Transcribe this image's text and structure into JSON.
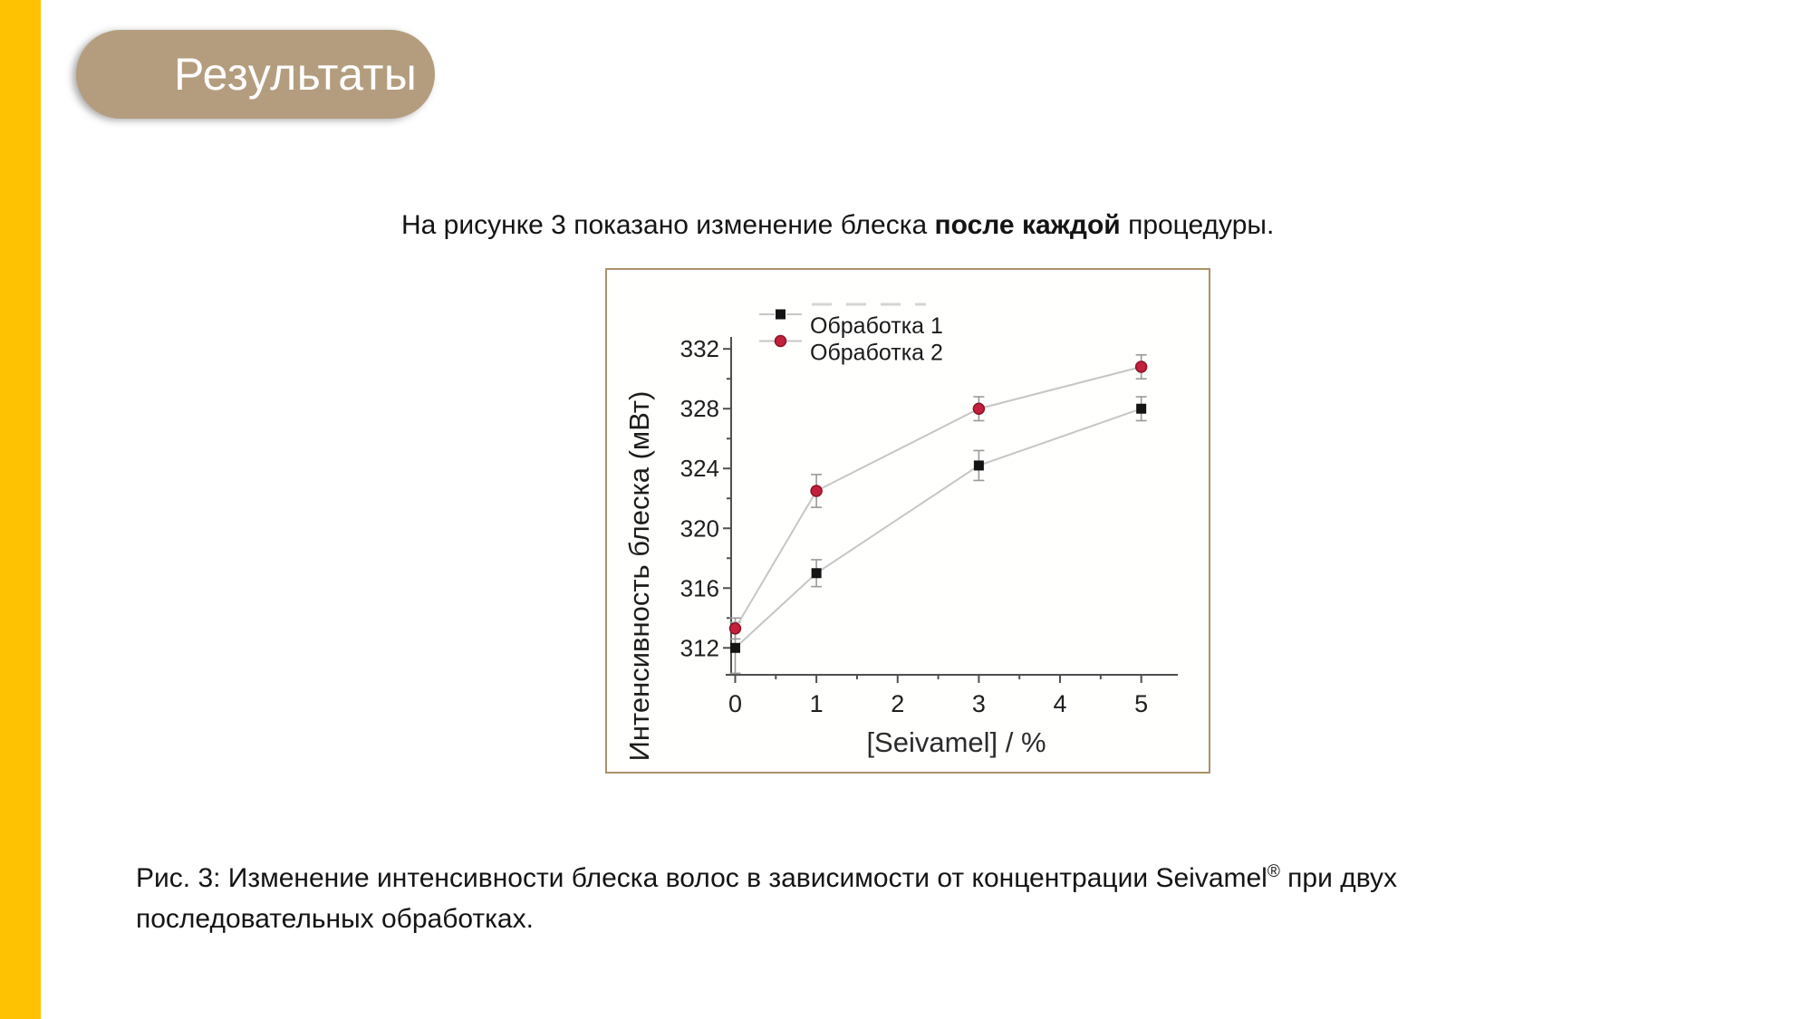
{
  "page": {
    "accent_bar_color": "#FFC203",
    "background_color": "#ffffff"
  },
  "header": {
    "title": "Результаты",
    "pill_color": "#b49d7e",
    "title_color": "#ffffff"
  },
  "intro": {
    "text_before": "На рисунке 3 показано изменение блеска ",
    "text_bold": "после каждой",
    "text_after": " процедуры."
  },
  "figure": {
    "border_color": "#ab9168"
  },
  "chart_data": {
    "type": "line",
    "title": "",
    "xlabel": "[Seivamel] / %",
    "ylabel": "Интенсивность блеска (мВт)",
    "xlim": [
      -0.05,
      5.45
    ],
    "ylim": [
      310.2,
      332.8
    ],
    "x_major_ticks": [
      0,
      1,
      2,
      3,
      4,
      5
    ],
    "x_minor_ticks": [
      0.5,
      1.5,
      2.5,
      3.5,
      4.5
    ],
    "y_major_ticks": [
      312,
      316,
      320,
      324,
      328,
      332
    ],
    "y_minor_ticks": [
      314,
      318,
      322,
      326,
      330
    ],
    "grid": false,
    "legend_position": "top-left-inside",
    "axis_color": "#4f4f4f",
    "tick_label_color": "#1e1e1e",
    "connector_color": "#c6c6c6",
    "error_bar_color": "#9a9a9a",
    "series": [
      {
        "name": "Обработка 1",
        "marker": "square",
        "color": "#141414",
        "edge_color": "#141414",
        "x": [
          0,
          1,
          3,
          5
        ],
        "y": [
          312.0,
          317.0,
          324.2,
          328.0
        ],
        "yerr": [
          1.7,
          0.9,
          1.0,
          0.8
        ]
      },
      {
        "name": "Обработка 2",
        "marker": "circle",
        "color": "#c2203d",
        "edge_color": "#8c1527",
        "x": [
          0,
          1,
          3,
          5
        ],
        "y": [
          313.3,
          322.5,
          328.0,
          330.8
        ],
        "yerr": [
          0.7,
          1.1,
          0.8,
          0.8
        ]
      }
    ]
  },
  "caption": {
    "text_before": "Рис. 3: Изменение интенсивности блеска волос в зависимости от концентрации Seivamel",
    "registered_mark": "®",
    "text_after": " при двух последовательных обработках."
  }
}
